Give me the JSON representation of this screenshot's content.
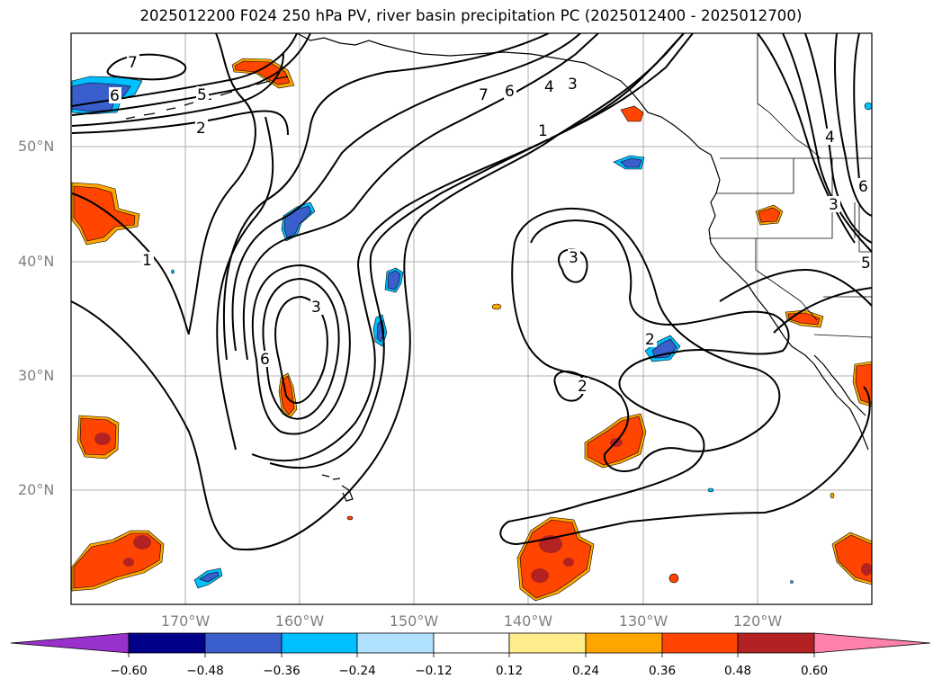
{
  "title": "2025012200 F024 250 hPa PV, river basin precipitation PC (2025012400 - 2025012700)",
  "lat_labels": [
    {
      "label": "50°N",
      "lat": 50
    },
    {
      "label": "40°N",
      "lat": 40
    },
    {
      "label": "30°N",
      "lat": 30
    },
    {
      "label": "20°N",
      "lat": 20
    }
  ],
  "lon_labels": [
    {
      "label": "170°W",
      "lon": -170
    },
    {
      "label": "160°W",
      "lon": -160
    },
    {
      "label": "150°W",
      "lon": -150
    },
    {
      "label": "140°W",
      "lon": -140
    },
    {
      "label": "130°W",
      "lon": -130
    },
    {
      "label": "120°W",
      "lon": -120
    }
  ],
  "map_extent": {
    "lon_min": -180,
    "lon_max": -110,
    "lat_min": 10,
    "lat_max": 60
  },
  "colorbar": {
    "colors": [
      "#9932cc",
      "#00008b",
      "#3a5fcd",
      "#00bfff",
      "#b0e2ff",
      "#ffffff",
      "#ffec8b",
      "#ffa500",
      "#ff4500",
      "#b22222",
      "#ff82ab"
    ],
    "ticks": [
      "−0.60",
      "−0.48",
      "−0.36",
      "−0.24",
      "−0.12",
      "0.12",
      "0.24",
      "0.36",
      "0.48",
      "0.60"
    ]
  },
  "pv_contour_labels": [
    "7",
    "6",
    "5",
    "2",
    "1",
    "3",
    "6",
    "7",
    "6",
    "4",
    "3",
    "1",
    "3",
    "2",
    "2",
    "4",
    "3",
    "5",
    "6"
  ]
}
